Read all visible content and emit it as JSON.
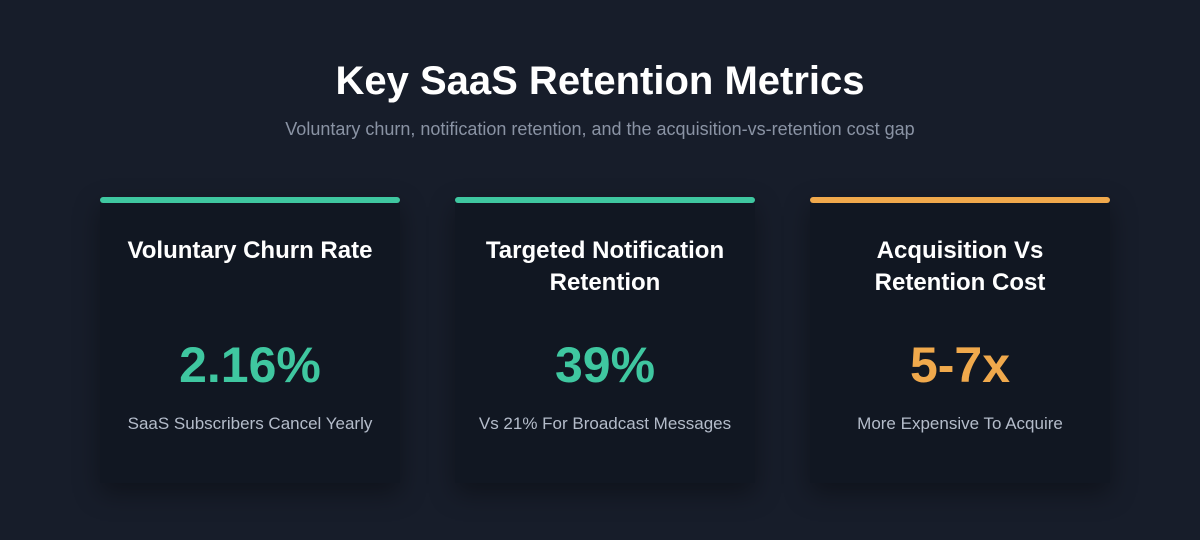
{
  "header": {
    "title": "Key SaaS Retention Metrics",
    "subtitle": "Voluntary churn, notification retention, and the acquisition-vs-retention cost gap"
  },
  "cards": [
    {
      "title": "Voluntary Churn Rate",
      "value": "2.16%",
      "description": "SaaS Subscribers Cancel Yearly",
      "accent_color": "#3fc7a0"
    },
    {
      "title": "Targeted Notification Retention",
      "value": "39%",
      "description": "Vs 21% For Broadcast Messages",
      "accent_color": "#3fc7a0"
    },
    {
      "title": "Acquisition Vs Retention Cost",
      "value": "5-7x",
      "description": "More Expensive To Acquire",
      "accent_color": "#f0a94c"
    }
  ],
  "colors": {
    "background": "#171d2a",
    "card_background": "#111722",
    "teal": "#3fc7a0",
    "orange": "#f0a94c"
  }
}
